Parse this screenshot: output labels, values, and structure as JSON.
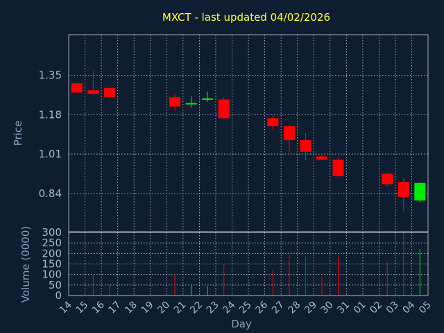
{
  "chart_data": {
    "type": "candlestick",
    "title": "MXCT - last updated 04/02/2026",
    "xlabel": "Day",
    "price_panel": {
      "ylabel": "Price",
      "yticks": [
        "1.35",
        "1.18",
        "1.01",
        "0.84"
      ],
      "ylim": [
        0.675,
        1.525
      ]
    },
    "volume_panel": {
      "ylabel": "Volume (0000)",
      "yticks": [
        "300",
        "250",
        "200",
        "150",
        "100",
        "50",
        "0"
      ],
      "ylim": [
        0,
        300
      ]
    },
    "x_tick_labels": [
      "14",
      "15",
      "16",
      "17",
      "18",
      "19",
      "20",
      "21",
      "22",
      "23",
      "24",
      "25",
      "26",
      "27",
      "28",
      "29",
      "30",
      "31",
      "01",
      "02",
      "03",
      "04",
      "05"
    ],
    "candles": [
      {
        "day": "14",
        "open": 1.315,
        "high": 1.315,
        "low": 1.275,
        "close": 1.275,
        "volume": 0
      },
      {
        "day": "15",
        "open": 1.285,
        "high": 1.37,
        "low": 1.265,
        "close": 1.27,
        "volume": 95
      },
      {
        "day": "16",
        "open": 1.295,
        "high": 1.3,
        "low": 1.25,
        "close": 1.255,
        "volume": 50
      },
      {
        "day": "20",
        "open": 1.255,
        "high": 1.27,
        "low": 1.195,
        "close": 1.215,
        "volume": 105
      },
      {
        "day": "21",
        "open": 1.225,
        "high": 1.26,
        "low": 1.21,
        "close": 1.23,
        "volume": 50
      },
      {
        "day": "22",
        "open": 1.245,
        "high": 1.28,
        "low": 1.235,
        "close": 1.25,
        "volume": 45
      },
      {
        "day": "23",
        "open": 1.245,
        "high": 1.255,
        "low": 1.16,
        "close": 1.165,
        "volume": 148
      },
      {
        "day": "26",
        "open": 1.165,
        "high": 1.18,
        "low": 1.11,
        "close": 1.13,
        "volume": 122
      },
      {
        "day": "27",
        "open": 1.13,
        "high": 1.135,
        "low": 1.015,
        "close": 1.07,
        "volume": 193
      },
      {
        "day": "28",
        "open": 1.07,
        "high": 1.1,
        "low": 0.985,
        "close": 1.02,
        "volume": 185
      },
      {
        "day": "29",
        "open": 1.0,
        "high": 1.005,
        "low": 0.985,
        "close": 0.985,
        "volume": 88
      },
      {
        "day": "30",
        "open": 0.985,
        "high": 0.995,
        "low": 0.91,
        "close": 0.915,
        "volume": 183
      },
      {
        "day": "02",
        "open": 0.925,
        "high": 0.93,
        "low": 0.87,
        "close": 0.88,
        "volume": 158
      },
      {
        "day": "03",
        "open": 0.89,
        "high": 0.905,
        "low": 0.76,
        "close": 0.825,
        "volume": 300
      },
      {
        "day": "04",
        "open": 0.81,
        "high": 0.89,
        "low": 0.8,
        "close": 0.885,
        "volume": 220
      }
    ],
    "grid": true,
    "colors": {
      "background": "#0e1e30",
      "title": "#ffff33",
      "up": "#00ee00",
      "down": "#ff0000",
      "grid": "#c8d0dc",
      "text": "#a8b8d0"
    }
  }
}
